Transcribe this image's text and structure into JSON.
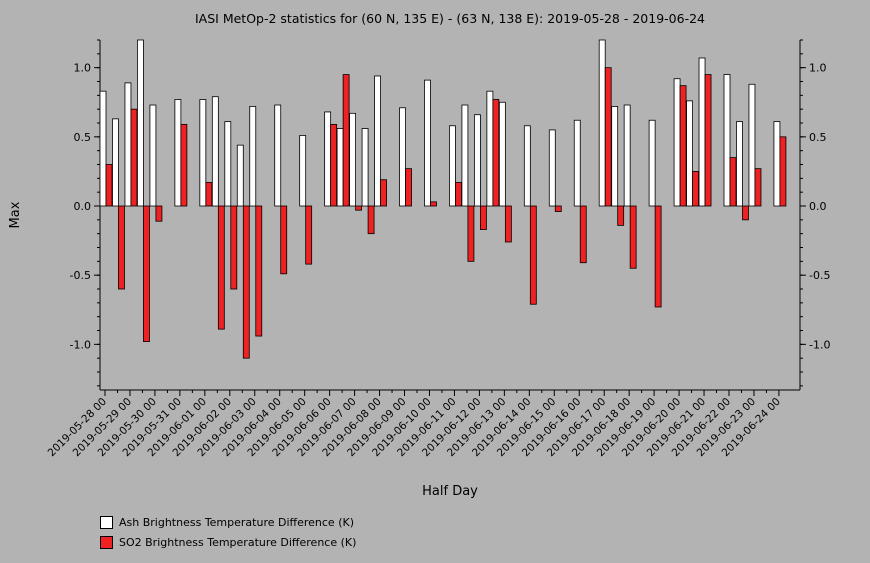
{
  "chart_data": {
    "type": "bar",
    "title": "IASI MetOp-2 statistics for (60 N, 135 E) - (63 N, 138 E): 2019-05-28 - 2019-06-24",
    "xlabel": "Half Day",
    "ylabel": "Max",
    "ylim": [
      -1.33,
      1.2
    ],
    "yticks": [
      "-1.0",
      "-0.5",
      "0.0",
      "0.5",
      "1.0"
    ],
    "ytick_values": [
      -1.0,
      -0.5,
      0.0,
      0.5,
      1.0
    ],
    "grid": false,
    "legend_position": "bottom-left",
    "tick_labels": [
      "2019-05-28 00",
      "2019-05-29 00",
      "2019-05-30 00",
      "2019-05-31 00",
      "2019-06-01 00",
      "2019-06-02 00",
      "2019-06-03 00",
      "2019-06-04 00",
      "2019-06-05 00",
      "2019-06-06 00",
      "2019-06-07 00",
      "2019-06-08 00",
      "2019-06-09 00",
      "2019-06-10 00",
      "2019-06-11 00",
      "2019-06-12 00",
      "2019-06-13 00",
      "2019-06-14 00",
      "2019-06-15 00",
      "2019-06-16 00",
      "2019-06-17 00",
      "2019-06-18 00",
      "2019-06-19 00",
      "2019-06-20 00",
      "2019-06-21 00",
      "2019-06-22 00",
      "2019-06-23 00",
      "2019-06-24 00"
    ],
    "categories": [
      "2019-05-28 00",
      "2019-05-28 12",
      "2019-05-29 00",
      "2019-05-29 12",
      "2019-05-30 00",
      "2019-05-30 12",
      "2019-05-31 00",
      "2019-05-31 12",
      "2019-06-01 00",
      "2019-06-01 12",
      "2019-06-02 00",
      "2019-06-02 12",
      "2019-06-03 00",
      "2019-06-03 12",
      "2019-06-04 00",
      "2019-06-04 12",
      "2019-06-05 00",
      "2019-06-05 12",
      "2019-06-06 00",
      "2019-06-06 12",
      "2019-06-07 00",
      "2019-06-07 12",
      "2019-06-08 00",
      "2019-06-08 12",
      "2019-06-09 00",
      "2019-06-09 12",
      "2019-06-10 00",
      "2019-06-10 12",
      "2019-06-11 00",
      "2019-06-11 12",
      "2019-06-12 00",
      "2019-06-12 12",
      "2019-06-13 00",
      "2019-06-13 12",
      "2019-06-14 00",
      "2019-06-14 12",
      "2019-06-15 00",
      "2019-06-15 12",
      "2019-06-16 00",
      "2019-06-16 12",
      "2019-06-17 00",
      "2019-06-17 12",
      "2019-06-18 00",
      "2019-06-18 12",
      "2019-06-19 00",
      "2019-06-19 12",
      "2019-06-20 00",
      "2019-06-20 12",
      "2019-06-21 00",
      "2019-06-21 12",
      "2019-06-22 00",
      "2019-06-22 12",
      "2019-06-23 00",
      "2019-06-23 12",
      "2019-06-24 00"
    ],
    "series": [
      {
        "name": "Ash Brightness Temperature Difference (K)",
        "color": "#ffffff",
        "values": [
          0.83,
          0.63,
          0.89,
          1.2,
          0.73,
          null,
          0.77,
          null,
          0.77,
          0.79,
          0.61,
          0.44,
          0.72,
          null,
          0.73,
          null,
          0.51,
          null,
          0.68,
          0.56,
          0.67,
          0.56,
          0.94,
          null,
          0.71,
          null,
          0.91,
          null,
          0.58,
          0.73,
          0.66,
          0.83,
          0.75,
          null,
          0.58,
          null,
          0.55,
          null,
          0.62,
          null,
          1.2,
          0.72,
          0.73,
          null,
          0.62,
          null,
          0.92,
          0.76,
          1.07,
          null,
          0.95,
          0.61,
          0.88,
          null,
          0.61
        ]
      },
      {
        "name": "SO2 Brightness Temperature Difference (K)",
        "color": "#ee2222",
        "values": [
          0.3,
          -0.6,
          0.7,
          -0.98,
          -0.11,
          null,
          0.59,
          null,
          0.17,
          -0.89,
          -0.6,
          -1.1,
          -0.94,
          null,
          -0.49,
          null,
          -0.42,
          null,
          0.59,
          0.95,
          -0.03,
          -0.2,
          0.19,
          null,
          0.27,
          null,
          0.03,
          null,
          0.17,
          -0.4,
          -0.17,
          0.77,
          -0.26,
          null,
          -0.71,
          null,
          -0.04,
          null,
          -0.41,
          null,
          1.0,
          -0.14,
          -0.45,
          null,
          -0.73,
          null,
          0.87,
          0.25,
          0.95,
          null,
          0.35,
          -0.1,
          0.27,
          null,
          0.5
        ]
      }
    ]
  }
}
